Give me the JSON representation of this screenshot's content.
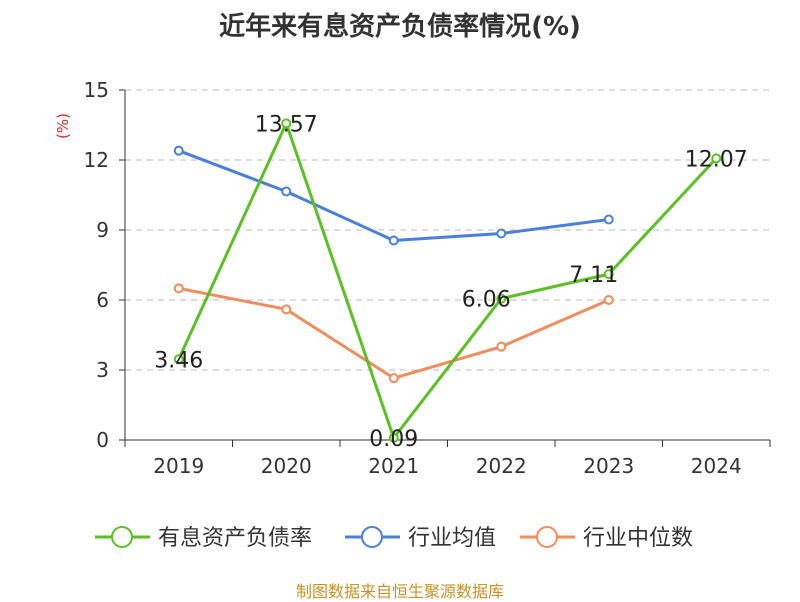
{
  "title": "近年来有息资产负债率情况(%)",
  "footer": "制图数据来自恒生聚源数据库",
  "chart_data": {
    "type": "line",
    "title": "近年来有息资产负债率情况(%)",
    "ylabel": "(%)",
    "xlabel": "",
    "categories": [
      "2019",
      "2020",
      "2021",
      "2022",
      "2023",
      "2024"
    ],
    "ylim": [
      0,
      15
    ],
    "yticks": [
      0,
      3,
      6,
      9,
      12,
      15
    ],
    "grid": true,
    "legend_position": "bottom",
    "series": [
      {
        "name": "有息资产负债率",
        "color": "#5cbf24",
        "values": [
          3.46,
          13.57,
          0.09,
          6.06,
          7.11,
          12.07
        ],
        "labels": [
          "3.46",
          "13.57",
          "0.09",
          "6.06",
          "7.11",
          "12.07"
        ]
      },
      {
        "name": "行业均值",
        "color": "#4a7fdc",
        "values": [
          12.4,
          10.65,
          8.55,
          8.85,
          9.45,
          null
        ]
      },
      {
        "name": "行业中位数",
        "color": "#f28c5c",
        "values": [
          6.5,
          5.6,
          2.65,
          4.0,
          6.0,
          null
        ]
      }
    ]
  }
}
